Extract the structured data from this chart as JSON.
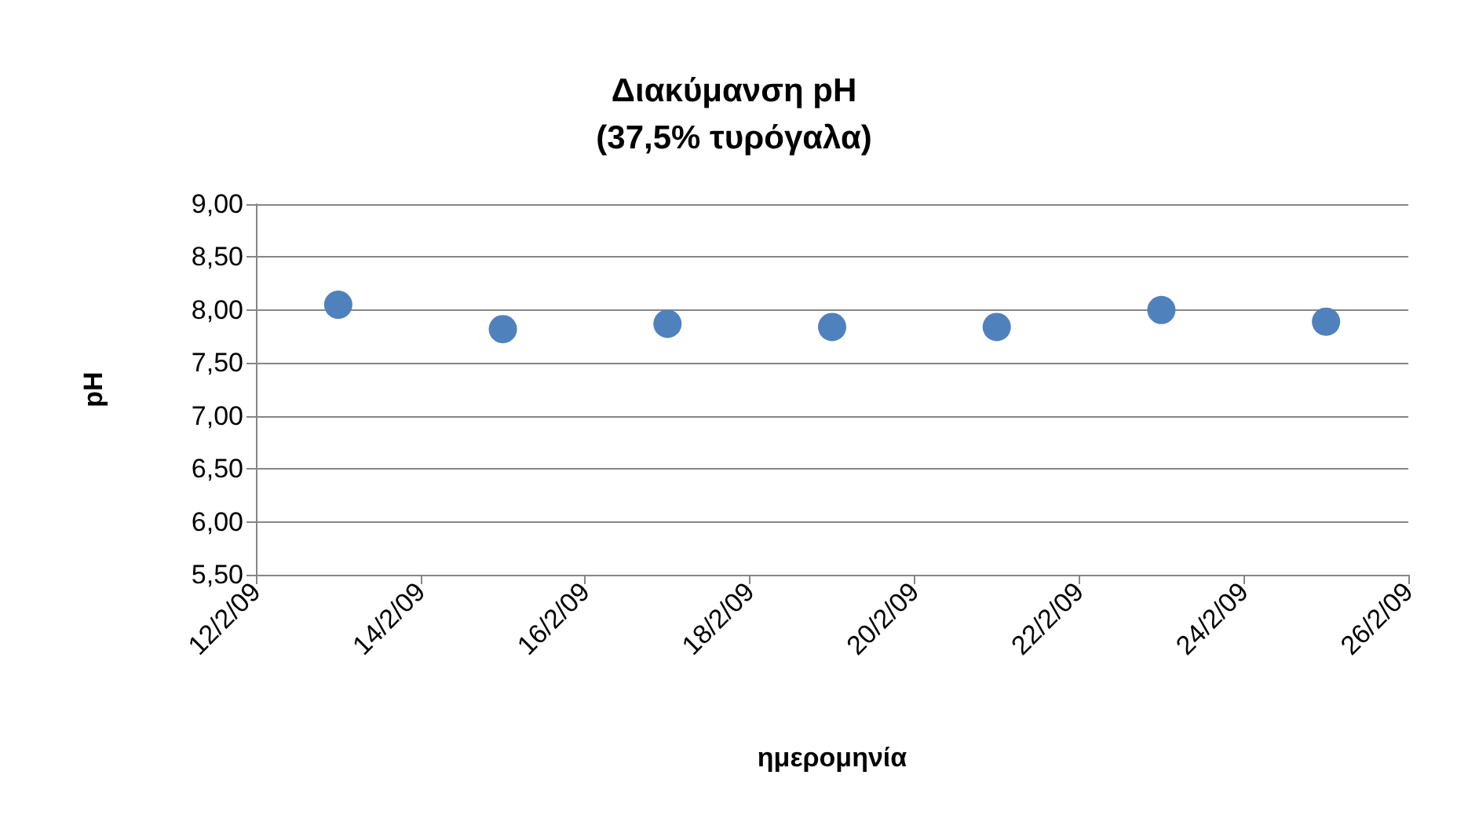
{
  "chart_data": {
    "type": "scatter",
    "title": "Διακύμανση pH\n(37,5% τυρόγαλα)",
    "xlabel": "ημερομηνία",
    "ylabel": "pH",
    "x": [
      "--02-13",
      "--02-15",
      "--02-17",
      "--02-19",
      "--02-21",
      "--02-23",
      "--02-25"
    ],
    "series": [
      {
        "color": "#4f81bd",
        "values": [
          8.05,
          7.82,
          7.87,
          7.84,
          7.84,
          8.0,
          7.89
        ]
      }
    ],
    "xlim": [
      "--02-12",
      "--02-26"
    ],
    "xticks": [
      {
        "value": "--02-12",
        "label": "12/2/09"
      },
      {
        "value": "--02-14",
        "label": "14/2/09"
      },
      {
        "value": "--02-16",
        "label": "16/2/09"
      },
      {
        "value": "--02-18",
        "label": "18/2/09"
      },
      {
        "value": "--02-20",
        "label": "20/2/09"
      },
      {
        "value": "--02-22",
        "label": "22/2/09"
      },
      {
        "value": "--02-24",
        "label": "24/2/09"
      },
      {
        "value": "--02-26",
        "label": "26/2/09"
      }
    ],
    "ylim": [
      5.5,
      9
    ],
    "yticks": [
      {
        "value": 5.5,
        "label": "5,50"
      },
      {
        "value": 6,
        "label": "6,00"
      },
      {
        "value": 6.5,
        "label": "6,50"
      },
      {
        "value": 7,
        "label": "7,00"
      },
      {
        "value": 7.5,
        "label": "7,50"
      },
      {
        "value": 8,
        "label": "8,00"
      },
      {
        "value": 8.5,
        "label": "8,50"
      },
      {
        "value": 9,
        "label": "9,00"
      }
    ],
    "grid": "y",
    "marker": "circle"
  }
}
